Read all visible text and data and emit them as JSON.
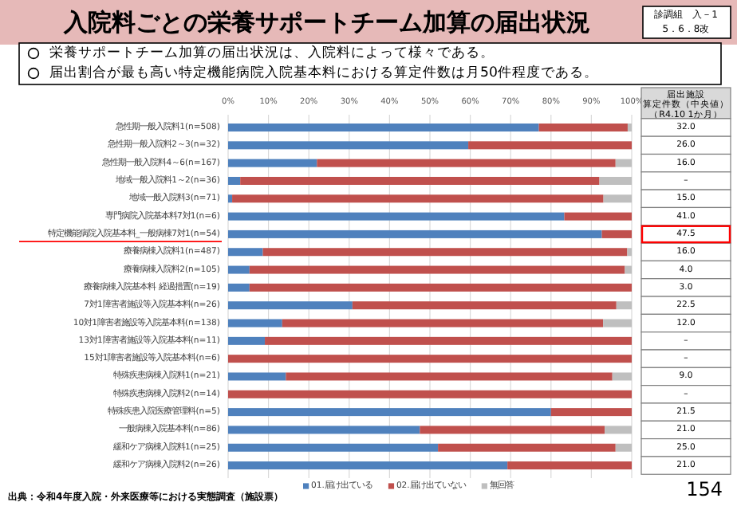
{
  "chart_data": {
    "type": "bar",
    "orientation": "horizontal",
    "stacked": true,
    "title": "入院料ごとの栄養サポートチーム加算の届出状況",
    "categories": [
      "急性期一般入院料1(n=508)",
      "急性期一般入院料2～3(n=32)",
      "急性期一般入院料4～6(n=167)",
      "地域一般入院料1～2(n=36)",
      "地域一般入院料3(n=71)",
      "専門病院入院基本料7対1(n=6)",
      "特定機能病院入院基本料_一般病棟7対1(n=54)",
      "療養病棟入院料1(n=487)",
      "療養病棟入院料2(n=105)",
      "療養病棟入院基本料 経過措置(n=19)",
      "7対1障害者施設等入院基本料(n=26)",
      "10対1障害者施設等入院基本料(n=138)",
      "13対1障害者施設等入院基本料(n=11)",
      "15対1障害者施設等入院基本料(n=6)",
      "特殊疾患病棟入院料1(n=21)",
      "特殊疾患病棟入院料2(n=14)",
      "特殊疾患入院医療管理料(n=5)",
      "一般病棟入院基本料(n=86)",
      "緩和ケア病棟入院料1(n=25)",
      "緩和ケア病棟入院料2(n=26)"
    ],
    "series": [
      {
        "name": "01.届け出ている",
        "color": "#4f81bd",
        "values": [
          77,
          59.5,
          22,
          3,
          1,
          83.3,
          92.6,
          8.6,
          5.3,
          5.3,
          30.8,
          13.4,
          9.1,
          0,
          14.3,
          0,
          80,
          47.5,
          52,
          69.2
        ]
      },
      {
        "name": "02.届け出ていない",
        "color": "#c0504d",
        "values": [
          22,
          40.5,
          74,
          89,
          92,
          16.7,
          7.4,
          90.3,
          93,
          94.7,
          65.4,
          79.5,
          90.9,
          100,
          80.9,
          100,
          20,
          45.8,
          44,
          30.8
        ]
      },
      {
        "name": "無回答",
        "color": "#bfbfbf",
        "values": [
          1,
          0,
          4,
          8,
          7,
          0,
          0,
          1.1,
          1.7,
          0,
          3.8,
          7.1,
          0,
          0,
          4.8,
          0,
          0,
          6.7,
          4,
          0
        ]
      }
    ],
    "xlim": [
      0,
      100
    ],
    "xticks": [
      {
        "value": 0,
        "label": "0%"
      },
      {
        "value": 10,
        "label": "10%"
      },
      {
        "value": 20,
        "label": "20%"
      },
      {
        "value": 30,
        "label": "30%"
      },
      {
        "value": 40,
        "label": "40%"
      },
      {
        "value": 50,
        "label": "50%"
      },
      {
        "value": 60,
        "label": "60%"
      },
      {
        "value": 70,
        "label": "70%"
      },
      {
        "value": 80,
        "label": "80%"
      },
      {
        "value": 90,
        "label": "90%"
      },
      {
        "value": 100,
        "label": "100%"
      }
    ],
    "grid": "x",
    "legend": "bottom",
    "annotations": [
      "診調組　入－1",
      "5．6．8改",
      "栄養サポートチーム加算の届出状況は、入院料によって様々である。",
      "届出割合が最も高い特定機能病院入院基本料における算定件数は月50件程度である。",
      "届出施設",
      "算定件数（中央値）",
      "（R4.10 1か月）",
      "32.0",
      "26.0",
      "16.0",
      "–",
      "15.0",
      "41.0",
      "47.5",
      "16.0",
      "4.0",
      "3.0",
      "22.5",
      "12.0",
      "–",
      "–",
      "9.0",
      "–",
      "21.5",
      "21.0",
      "25.0",
      "21.0",
      "出典：令和4年度入院・外来医療等における実態調査（施設票）",
      "154"
    ]
  }
}
